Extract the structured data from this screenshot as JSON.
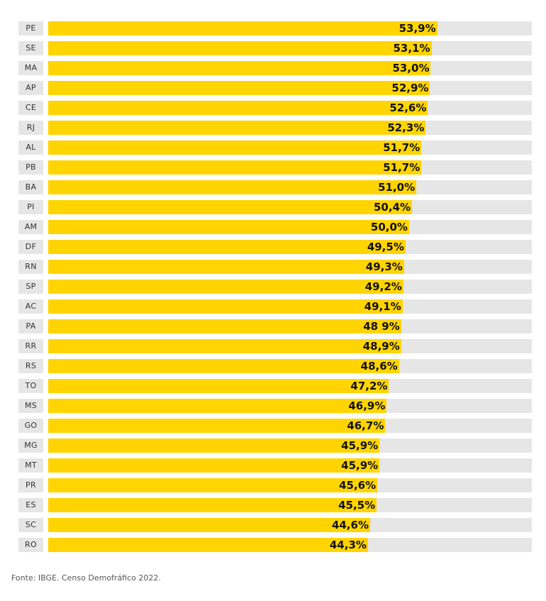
{
  "chart_data": {
    "type": "bar",
    "orientation": "horizontal",
    "categories": [
      "PE",
      "SE",
      "MA",
      "AP",
      "CE",
      "RJ",
      "AL",
      "PB",
      "BA",
      "PI",
      "AM",
      "DF",
      "RN",
      "SP",
      "AC",
      "PA",
      "RR",
      "RS",
      "TO",
      "MS",
      "GO",
      "MG",
      "MT",
      "PR",
      "ES",
      "SC",
      "RO"
    ],
    "values": [
      53.9,
      53.1,
      53.0,
      52.9,
      52.6,
      52.3,
      51.7,
      51.7,
      51.0,
      50.4,
      50.0,
      49.5,
      49.3,
      49.2,
      49.1,
      48.9,
      48.9,
      48.6,
      47.2,
      46.9,
      46.7,
      45.9,
      45.9,
      45.6,
      45.5,
      44.6,
      44.3
    ],
    "value_labels": [
      "53,9%",
      "53,1%",
      "53,0%",
      "52,9%",
      "52,6%",
      "52,3%",
      "51,7%",
      "51,7%",
      "51,0%",
      "50,4%",
      "50,0%",
      "49,5%",
      "49,3%",
      "49,2%",
      "49,1%",
      "48 9%",
      "48,9%",
      "48,6%",
      "47,2%",
      "46,9%",
      "46,7%",
      "45,9%",
      "45,9%",
      "45,6%",
      "45,5%",
      "44,6%",
      "44,3%"
    ],
    "xlim": [
      0,
      67
    ],
    "bar_color": "#ffd400",
    "track_color": "#e6e6e6",
    "grid": false
  },
  "source": "Fonte: IBGE. Censo Demofráfico 2022."
}
